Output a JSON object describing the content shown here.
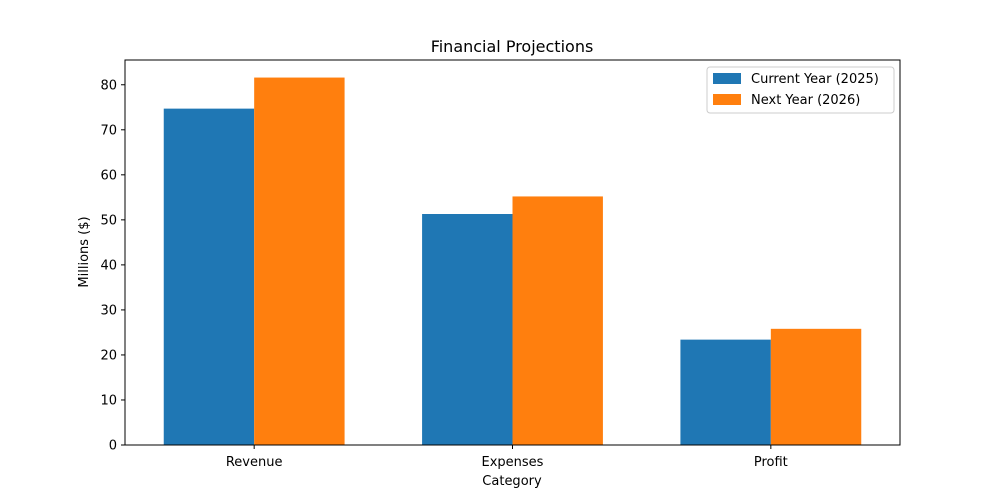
{
  "chart_data": {
    "type": "bar",
    "title": "Financial Projections",
    "xlabel": "Category",
    "ylabel": "Millions ($)",
    "categories": [
      "Revenue",
      "Expenses",
      "Profit"
    ],
    "series": [
      {
        "name": "Current Year (2025)",
        "color": "#1f77b4",
        "values": [
          74.7,
          51.3,
          23.4
        ]
      },
      {
        "name": "Next Year (2026)",
        "color": "#ff7f0e",
        "values": [
          81.6,
          55.2,
          25.8
        ]
      }
    ],
    "ylim": [
      0,
      85.5
    ],
    "yticks": [
      0,
      10,
      20,
      30,
      40,
      50,
      60,
      70,
      80
    ],
    "grid": false,
    "legend_position": "top-right"
  }
}
